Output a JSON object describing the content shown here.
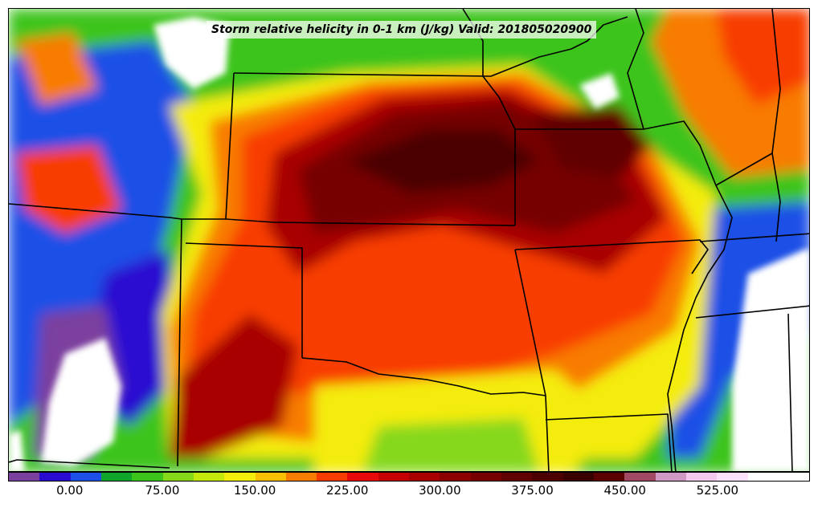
{
  "title": "Storm relative helicity in 0-1 km (J/kg) Valid: 201805020900",
  "colorbar": {
    "min": -50,
    "max": 600,
    "step": 25,
    "colors": [
      "#7b3f9e",
      "#2a0bd0",
      "#1e4fe6",
      "#10a52c",
      "#3cc41a",
      "#86d81a",
      "#c4e80c",
      "#f4ec0a",
      "#f8c000",
      "#f87c00",
      "#f83c00",
      "#e80a0a",
      "#c60000",
      "#a80000",
      "#8c0000",
      "#760000",
      "#600000",
      "#4c0000",
      "#3a0000",
      "#5a0000",
      "#a04a64",
      "#d098c4",
      "#f4c8ee",
      "#fde0fa",
      "#ffffff",
      "#ffffff"
    ],
    "tick_labels": [
      "0.00",
      "75.00",
      "150.00",
      "225.00",
      "300.00",
      "375.00",
      "450.00",
      "525.00"
    ],
    "tick_values": [
      0,
      75,
      150,
      225,
      300,
      375,
      450,
      525
    ]
  },
  "map": {
    "region": "Central United States",
    "field": "0-1 km storm relative helicity"
  }
}
